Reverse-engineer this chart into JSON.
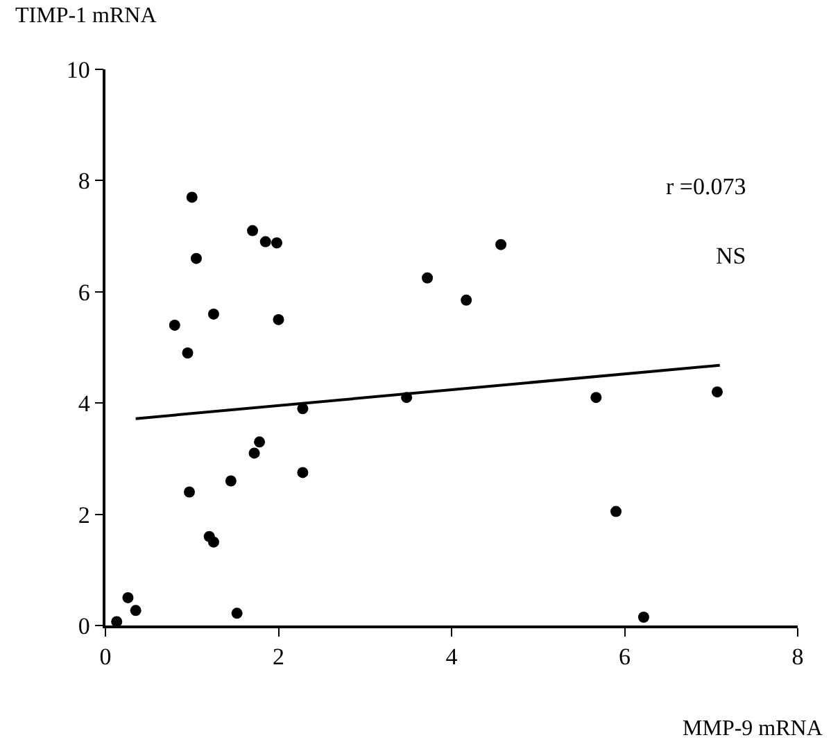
{
  "chart_data": {
    "type": "scatter",
    "xlabel": "MMP-9 mRNA",
    "ylabel": "TIMP-1 mRNA",
    "xlim": [
      0,
      8
    ],
    "xticks": [
      0,
      2,
      4,
      6,
      8
    ],
    "ylim": [
      0,
      10
    ],
    "yticks": [
      0,
      2,
      4,
      6,
      8,
      10
    ],
    "grid": false,
    "legend": false,
    "annotations": [
      "r =0.073",
      "NS"
    ],
    "series": [
      {
        "marker": "circle",
        "color": "#000000",
        "x": [
          0.13,
          0.26,
          0.35,
          0.8,
          0.95,
          0.97,
          1.0,
          1.05,
          1.2,
          1.25,
          1.25,
          1.45,
          1.52,
          1.7,
          1.72,
          1.78,
          1.85,
          1.95,
          1.98,
          2.0,
          2.28,
          2.28,
          3.48,
          3.72,
          4.17,
          4.57,
          5.67,
          5.9,
          6.22,
          7.07
        ],
        "values": [
          0.07,
          0.5,
          0.27,
          5.4,
          4.9,
          2.4,
          7.7,
          6.6,
          1.6,
          1.5,
          5.6,
          2.6,
          0.22,
          7.1,
          3.1,
          3.3,
          6.9,
          null,
          6.88,
          5.5,
          3.9,
          2.75,
          4.1,
          6.25,
          5.85,
          6.85,
          4.1,
          2.05,
          0.15,
          4.2
        ]
      },
      {
        "type": "line",
        "marker": "none",
        "color": "#000000",
        "line_style": "solid",
        "x": [
          0.35,
          7.1
        ],
        "values": [
          3.72,
          4.68
        ]
      }
    ]
  }
}
